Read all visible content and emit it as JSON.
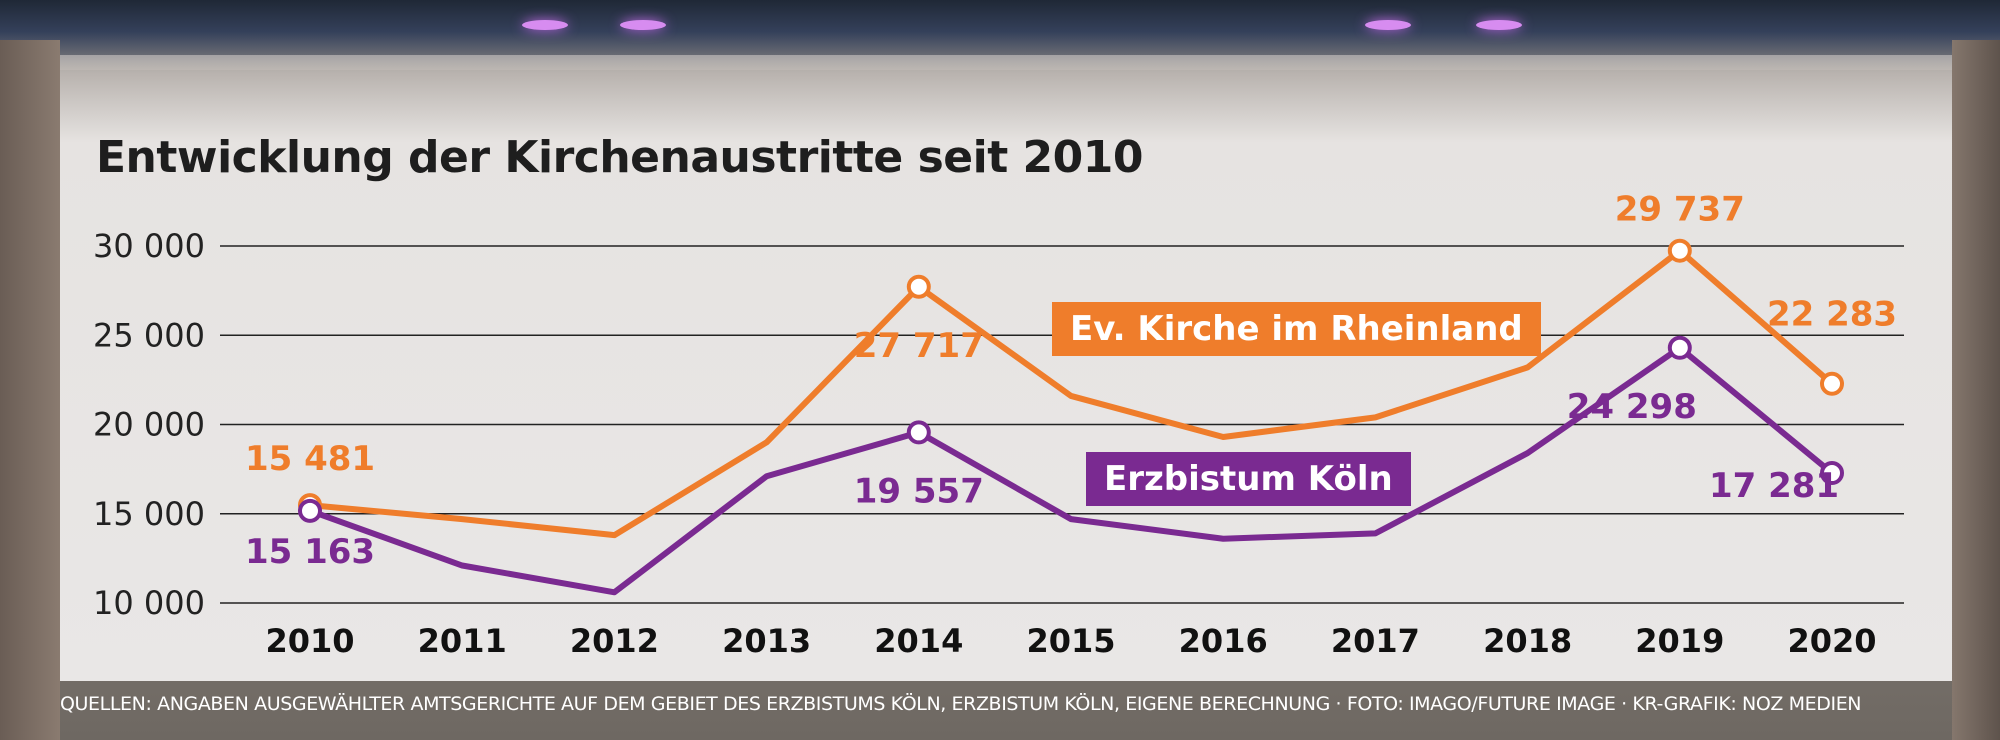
{
  "colors": {
    "ev_kirche": "#ef7d2b",
    "erzbistum": "#7a2a91",
    "grid": "#222222"
  },
  "footer": {
    "text": "QUELLEN: ANGABEN AUSGEWÄHLTER AMTSGERICHTE AUF DEM GEBIET DES ERZBISTUMS KÖLN, ERZBISTUM KÖLN, EIGENE BERECHNUNG · FOTO: IMAGO/FUTURE IMAGE · KR-GRAFIK: NOZ MEDIEN"
  },
  "chart_data": {
    "type": "line",
    "title": "Entwicklung der Kirchenaustritte seit 2010",
    "xlabel": "",
    "ylabel": "",
    "categories": [
      "2010",
      "2011",
      "2012",
      "2013",
      "2014",
      "2015",
      "2016",
      "2017",
      "2018",
      "2019",
      "2020"
    ],
    "ylim": [
      10000,
      30000
    ],
    "yticks": [
      10000,
      15000,
      20000,
      25000,
      30000
    ],
    "ytick_labels": [
      "10 000",
      "15 000",
      "20 000",
      "25 000",
      "30 000"
    ],
    "grid": true,
    "series": [
      {
        "name": "Ev. Kirche im Rheinland",
        "values": [
          15481,
          14700,
          13800,
          19000,
          27717,
          21600,
          19300,
          20400,
          23200,
          29737,
          22283
        ],
        "data_labels": {
          "0": "15 481",
          "4": "27 717",
          "9": "29 737",
          "10": "22 283"
        }
      },
      {
        "name": "Erzbistum Köln",
        "values": [
          15163,
          12100,
          10600,
          17100,
          19557,
          14700,
          13600,
          13900,
          18400,
          24298,
          17281
        ],
        "data_labels": {
          "0": "15 163",
          "4": "19 557",
          "9": "24 298",
          "10": "17 281"
        }
      }
    ]
  }
}
